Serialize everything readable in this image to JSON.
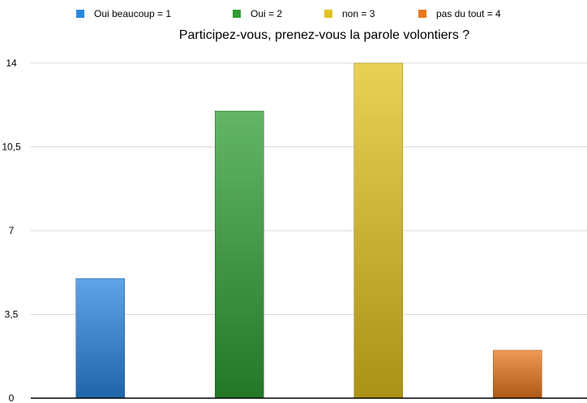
{
  "chart_data": {
    "type": "bar",
    "title": "Participez-vous, prenez-vous la parole volontiers ?",
    "xlabel": "",
    "ylabel": "",
    "categories": [
      "Oui beaucoup = 1",
      "Oui = 2",
      "non = 3",
      "pas du tout = 4"
    ],
    "values": [
      5,
      12,
      14,
      2
    ],
    "colors": [
      "#2b86e0",
      "#2f9e33",
      "#e2c21f",
      "#e8781d"
    ],
    "ylim": [
      0,
      14
    ],
    "yticks": [
      "0",
      "3,5",
      "7",
      "10,5",
      "14"
    ],
    "ytick_values": [
      0,
      3.5,
      7,
      10.5,
      14
    ],
    "grid": true,
    "legend_placement": "top"
  }
}
